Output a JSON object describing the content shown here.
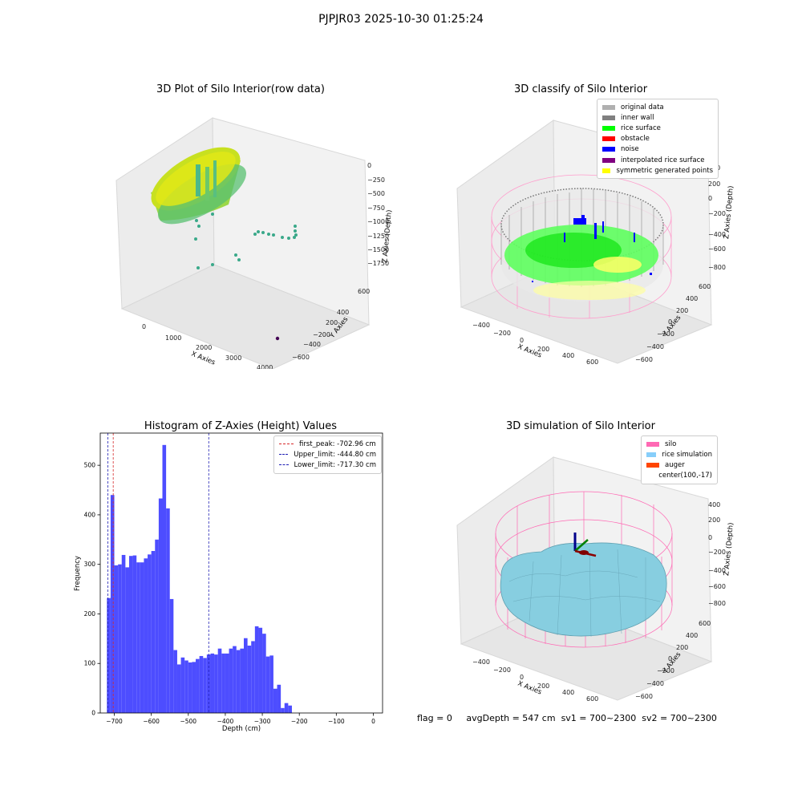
{
  "figure": {
    "suptitle": "PJPJR03 2025-10-30 01:25:24",
    "footer": {
      "flag": "flag = 0",
      "avg_depth": "avgDepth = 547 cm",
      "sv1": "sv1 = 700~2300",
      "sv2": "sv2 = 700~2300"
    }
  },
  "colors": {
    "histogram_bar": "#4d4dff",
    "first_peak": "#d62728",
    "limits": "#1f1fb4",
    "silo": "#ff69b4",
    "rice_simulation": "#87cefa",
    "auger": "#ff4500",
    "inner_wall": "#808080",
    "rice_surface": "#00ff00",
    "noise": "#0000ff",
    "interpolated": "#800080",
    "symmetric": "#ffff00",
    "original": "#b0b0b0"
  },
  "chart_data": [
    {
      "type": "scatter",
      "title": "3D Plot of Silo Interior(row data)",
      "xlabel": "X Axies",
      "ylabel": "Y Axies",
      "zlabel": "Z Axies (Depth)",
      "x_ticks": [
        "0",
        "1000",
        "2000",
        "3000",
        "4000"
      ],
      "y_ticks": [
        "600",
        "400",
        "200",
        "−200",
        "−400",
        "−600"
      ],
      "z_ticks": [
        "0",
        "−250",
        "−500",
        "−750",
        "−1000",
        "−1250",
        "−1500",
        "−1750"
      ]
    },
    {
      "type": "scatter",
      "title": "3D classify of Silo Interior",
      "xlabel": "X Axies",
      "ylabel": "Y Axies",
      "zlabel": "Z Axies (Depth)",
      "x_ticks": [
        "−400",
        "−200",
        "0",
        "200",
        "400",
        "600"
      ],
      "y_ticks": [
        "600",
        "400",
        "200",
        "0",
        "−200",
        "−400",
        "−600"
      ],
      "z_ticks": [
        "200",
        "0",
        "−200",
        "−400",
        "−600",
        "−800"
      ],
      "z_top_tick": "00",
      "legend": [
        {
          "label": "original data",
          "color": "#b0b0b0"
        },
        {
          "label": "inner wall",
          "color": "#808080"
        },
        {
          "label": "rice surface",
          "color": "#00ff00"
        },
        {
          "label": "obstacle",
          "color": "#ff0000"
        },
        {
          "label": "noise",
          "color": "#0000ff"
        },
        {
          "label": "interpolated rice surface",
          "color": "#800080"
        },
        {
          "label": "symmetric generated points",
          "color": "#ffff00"
        }
      ]
    },
    {
      "type": "bar",
      "title": "Histogram of Z-Axies (Height) Values",
      "xlabel": "Depth (cm)",
      "ylabel": "Frequency",
      "xlim": [
        -738,
        25
      ],
      "ylim": [
        0,
        565
      ],
      "x_ticks": [
        -700,
        -600,
        -500,
        -400,
        -300,
        -200,
        -100,
        0
      ],
      "x_tick_labels": [
        "−700",
        "−600",
        "−500",
        "−400",
        "−300",
        "−200",
        "−100",
        "0"
      ],
      "y_ticks": [
        0,
        100,
        200,
        300,
        400,
        500
      ],
      "y_tick_labels": [
        "0",
        "100",
        "200",
        "300",
        "400",
        "500"
      ],
      "bin_start": -720,
      "bin_width": 10,
      "values": [
        232,
        440,
        298,
        300,
        319,
        294,
        317,
        318,
        304,
        304,
        312,
        320,
        327,
        350,
        433,
        541,
        413,
        230,
        127,
        98,
        112,
        106,
        102,
        103,
        109,
        115,
        111,
        118,
        120,
        118,
        130,
        120,
        120,
        130,
        135,
        127,
        130,
        151,
        136,
        145,
        175,
        172,
        160,
        114,
        116,
        49,
        57,
        10,
        20,
        15
      ],
      "vlines": [
        {
          "name": "first_peak",
          "x": -702.96,
          "label": "first_peak: -702.96 cm",
          "color": "#d62728"
        },
        {
          "name": "upper_limit",
          "x": -444.8,
          "label": "Upper_limit: -444.80 cm",
          "color": "#1f1fb4"
        },
        {
          "name": "lower_limit",
          "x": -717.3,
          "label": "Lower_limit: -717.30 cm",
          "color": "#1f1fb4"
        }
      ]
    },
    {
      "type": "scatter",
      "title": "3D simulation of Silo Interior",
      "xlabel": "X Axies",
      "ylabel": "Y Axies",
      "zlabel": "Z Axies (Depth)",
      "x_ticks": [
        "−400",
        "−200",
        "0",
        "200",
        "400",
        "600"
      ],
      "y_ticks": [
        "600",
        "400",
        "200",
        "0",
        "−200",
        "−400",
        "−600"
      ],
      "z_ticks": [
        "400",
        "200",
        "0",
        "−200",
        "−400",
        "−600",
        "−800"
      ],
      "legend": [
        {
          "label": "silo",
          "color": "#ff69b4"
        },
        {
          "label": "rice simulation",
          "color": "#87cefa"
        },
        {
          "label": "auger",
          "color": "#ff4500"
        },
        {
          "label": "center(100,-17)",
          "color": ""
        }
      ]
    }
  ]
}
